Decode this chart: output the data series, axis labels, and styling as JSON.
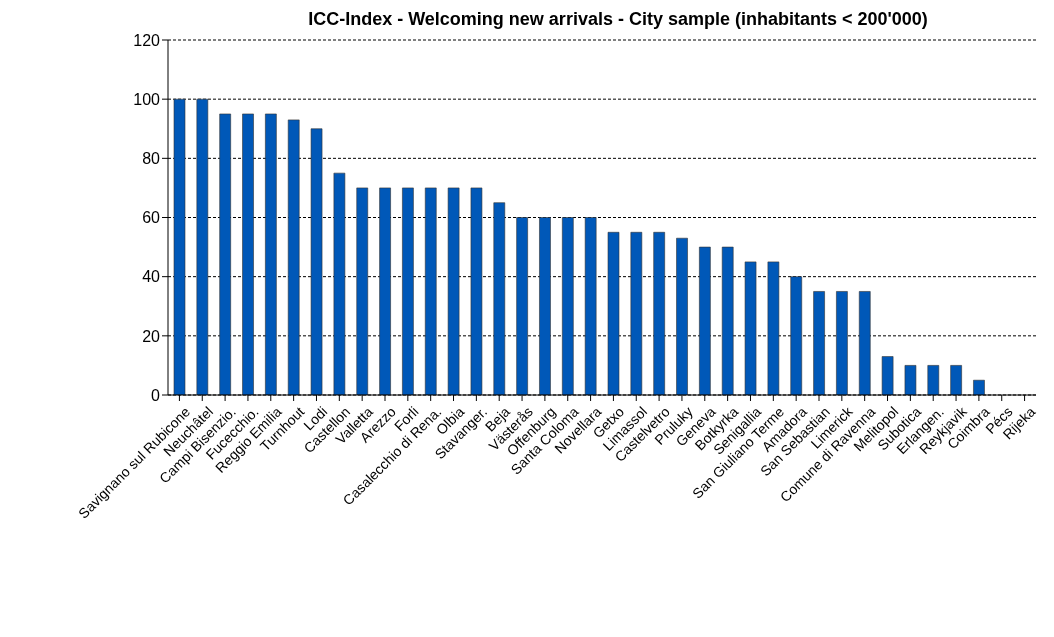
{
  "chart_data": {
    "type": "bar",
    "title": "ICC-Index - Welcoming new arrivals - City sample (inhabitants < 200'000)",
    "categories": [
      "Savignano sul Rubicone",
      "Neuchâtel",
      "Campi Bisenzio.",
      "Fucecchio.",
      "Reggio Emilia",
      "Turnhout",
      "Lodi",
      "Castellon",
      "Valletta",
      "Arezzo",
      "Forli",
      "Casalecchio di Rena.",
      "Olbia",
      "Stavanger.",
      "Beja",
      "Västerås",
      "Offenburg",
      "Santa Coloma",
      "Novellara",
      "Getxo",
      "Limassol",
      "Castelvetro",
      "Pruluky",
      "Geneva",
      "Botkyrka",
      "Senigallia",
      "San Giuliano Terme",
      "Amadora",
      "San Sebastian",
      "Limerick",
      "Comune di Ravenna",
      "Melitopol",
      "Subotica",
      "Erlangen.",
      "Reykjavik",
      "Coimbra",
      "Pécs",
      "Rijeka"
    ],
    "values": [
      100,
      100,
      95,
      95,
      95,
      93,
      90,
      75,
      70,
      70,
      70,
      70,
      70,
      70,
      65,
      60,
      60,
      60,
      60,
      55,
      55,
      55,
      53,
      50,
      50,
      45,
      45,
      40,
      35,
      35,
      35,
      13,
      10,
      10,
      10,
      5,
      0,
      0
    ],
    "color": "#0058b8",
    "ylim": [
      0,
      120
    ],
    "yticks": [
      0,
      20,
      40,
      60,
      80,
      100,
      120
    ],
    "grid": "y",
    "legend": false
  }
}
